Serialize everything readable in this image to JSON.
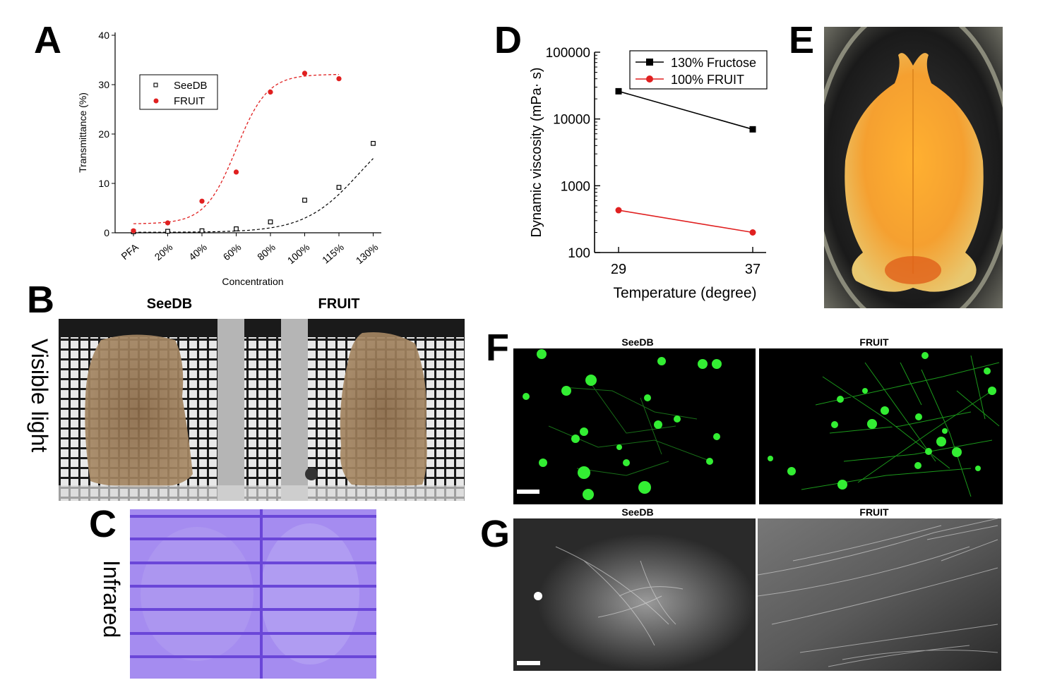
{
  "panels": {
    "a": "A",
    "b": "B",
    "c": "C",
    "d": "D",
    "e": "E",
    "f": "F",
    "g": "G"
  },
  "chart_data": [
    {
      "panel": "A",
      "type": "scatter",
      "categories": [
        "PFA",
        "20%",
        "40%",
        "60%",
        "80%",
        "100%",
        "115%",
        "130%"
      ],
      "series": [
        {
          "name": "SeeDB",
          "values": [
            0.2,
            0.3,
            0.4,
            0.8,
            2.2,
            6.6,
            9.2,
            18.1
          ],
          "color": "#000000",
          "marker": "open-square",
          "fit": "dashed"
        },
        {
          "name": "FRUIT",
          "values": [
            0.4,
            2.0,
            6.4,
            12.3,
            28.5,
            32.3,
            31.2,
            null
          ],
          "color": "#e02020",
          "marker": "filled-circle",
          "fit": "dashed"
        }
      ],
      "xlabel": "Concentration",
      "ylabel": "Transmittance (%)",
      "ylim": [
        0,
        40
      ],
      "yticks": [
        0,
        10,
        20,
        30,
        40
      ],
      "legend": "top-left",
      "grid": false
    },
    {
      "panel": "D",
      "type": "line",
      "x": [
        29,
        37
      ],
      "xticks": [
        "29",
        "37"
      ],
      "series": [
        {
          "name": "130% Fructose",
          "values": [
            26000,
            7000
          ],
          "color": "#000000",
          "marker": "filled-square"
        },
        {
          "name": "100% FRUIT",
          "values": [
            430,
            200
          ],
          "color": "#e02020",
          "marker": "filled-circle"
        }
      ],
      "xlabel": "Temperature (degree)",
      "ylabel": "Dynamic viscosity (mPa· s)",
      "yscale": "log",
      "ylim": [
        100,
        100000
      ],
      "yticks": [
        "100",
        "1000",
        "10000",
        "100000"
      ],
      "legend": "top-right",
      "grid": false
    }
  ],
  "panel_b": {
    "left_label": "SeeDB",
    "right_label": "FRUIT",
    "side_label": "Visible light"
  },
  "panel_c": {
    "side_label": "Infrared"
  },
  "panel_f": {
    "left_label": "SeeDB",
    "right_label": "FRUIT"
  },
  "panel_g": {
    "left_label": "SeeDB",
    "right_label": "FRUIT"
  },
  "colors": {
    "fruit_red": "#e02020",
    "seedb_black": "#000000",
    "fluor_green": "#22dd22",
    "infrared_purple": "#a58cf0"
  }
}
